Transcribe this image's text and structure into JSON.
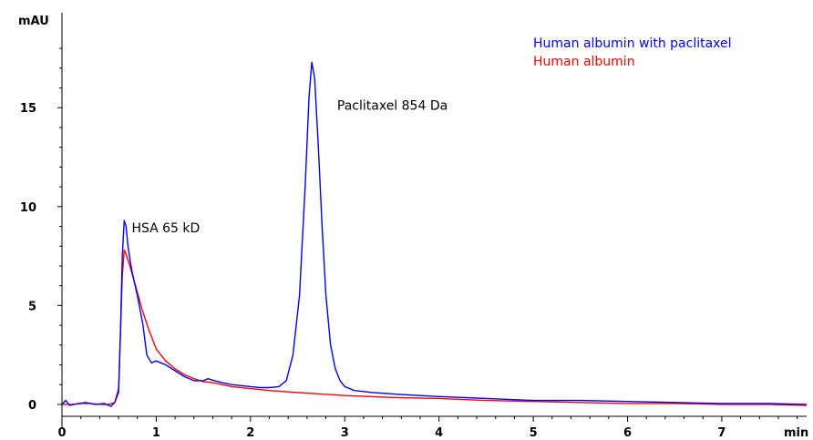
{
  "chart_data": {
    "type": "line",
    "title": "",
    "xlabel": "min",
    "ylabel": "mAU",
    "xlim": [
      0,
      7.9
    ],
    "ylim": [
      -1.2,
      19.8
    ],
    "grid": false,
    "legend_position": "top-right",
    "x_ticks": [
      0,
      1,
      2,
      3,
      4,
      5,
      6,
      7
    ],
    "y_ticks": [
      0,
      5,
      10,
      15
    ],
    "series": [
      {
        "name": "Human albumin with paclitaxel",
        "color": "#0000ff",
        "points": [
          [
            0.0,
            0.0
          ],
          [
            0.04,
            0.2
          ],
          [
            0.08,
            -0.05
          ],
          [
            0.15,
            0.02
          ],
          [
            0.25,
            0.1
          ],
          [
            0.35,
            0.0
          ],
          [
            0.45,
            0.05
          ],
          [
            0.52,
            -0.1
          ],
          [
            0.56,
            0.1
          ],
          [
            0.6,
            0.6
          ],
          [
            0.62,
            3.5
          ],
          [
            0.64,
            7.5
          ],
          [
            0.66,
            9.3
          ],
          [
            0.68,
            9.0
          ],
          [
            0.7,
            8.0
          ],
          [
            0.74,
            6.8
          ],
          [
            0.8,
            5.5
          ],
          [
            0.86,
            4.0
          ],
          [
            0.9,
            2.5
          ],
          [
            0.95,
            2.1
          ],
          [
            1.0,
            2.2
          ],
          [
            1.05,
            2.1
          ],
          [
            1.1,
            2.0
          ],
          [
            1.2,
            1.7
          ],
          [
            1.3,
            1.4
          ],
          [
            1.4,
            1.2
          ],
          [
            1.5,
            1.2
          ],
          [
            1.55,
            1.3
          ],
          [
            1.62,
            1.2
          ],
          [
            1.7,
            1.1
          ],
          [
            1.8,
            1.0
          ],
          [
            1.9,
            0.95
          ],
          [
            2.0,
            0.9
          ],
          [
            2.1,
            0.85
          ],
          [
            2.2,
            0.85
          ],
          [
            2.3,
            0.9
          ],
          [
            2.38,
            1.2
          ],
          [
            2.45,
            2.5
          ],
          [
            2.52,
            5.5
          ],
          [
            2.58,
            11.0
          ],
          [
            2.62,
            15.5
          ],
          [
            2.65,
            17.3
          ],
          [
            2.68,
            16.5
          ],
          [
            2.72,
            13.0
          ],
          [
            2.76,
            9.0
          ],
          [
            2.8,
            5.5
          ],
          [
            2.85,
            3.0
          ],
          [
            2.9,
            1.8
          ],
          [
            2.95,
            1.2
          ],
          [
            3.0,
            0.9
          ],
          [
            3.1,
            0.7
          ],
          [
            3.3,
            0.6
          ],
          [
            3.6,
            0.5
          ],
          [
            4.0,
            0.4
          ],
          [
            4.5,
            0.3
          ],
          [
            5.0,
            0.2
          ],
          [
            5.5,
            0.2
          ],
          [
            6.0,
            0.15
          ],
          [
            6.5,
            0.1
          ],
          [
            7.0,
            0.05
          ],
          [
            7.5,
            0.05
          ],
          [
            7.9,
            0.0
          ]
        ]
      },
      {
        "name": "Human albumin",
        "color": "#ff0000",
        "points": [
          [
            0.0,
            0.0
          ],
          [
            0.1,
            0.0
          ],
          [
            0.2,
            0.05
          ],
          [
            0.3,
            0.05
          ],
          [
            0.4,
            0.0
          ],
          [
            0.5,
            0.0
          ],
          [
            0.56,
            0.1
          ],
          [
            0.6,
            0.8
          ],
          [
            0.62,
            3.5
          ],
          [
            0.64,
            6.5
          ],
          [
            0.66,
            7.8
          ],
          [
            0.68,
            7.6
          ],
          [
            0.72,
            7.0
          ],
          [
            0.78,
            6.0
          ],
          [
            0.85,
            4.8
          ],
          [
            0.92,
            3.8
          ],
          [
            1.0,
            2.8
          ],
          [
            1.1,
            2.2
          ],
          [
            1.2,
            1.8
          ],
          [
            1.3,
            1.5
          ],
          [
            1.4,
            1.3
          ],
          [
            1.5,
            1.15
          ],
          [
            1.6,
            1.1
          ],
          [
            1.7,
            1.0
          ],
          [
            1.8,
            0.9
          ],
          [
            2.0,
            0.8
          ],
          [
            2.2,
            0.7
          ],
          [
            2.5,
            0.6
          ],
          [
            3.0,
            0.45
          ],
          [
            3.5,
            0.35
          ],
          [
            4.0,
            0.3
          ],
          [
            4.5,
            0.2
          ],
          [
            5.0,
            0.15
          ],
          [
            5.5,
            0.1
          ],
          [
            6.0,
            0.05
          ],
          [
            6.5,
            0.05
          ],
          [
            7.0,
            0.0
          ],
          [
            7.5,
            0.0
          ],
          [
            7.9,
            -0.05
          ]
        ]
      }
    ],
    "annotations": [
      {
        "text": "HSA 65 kD",
        "x": 0.72,
        "y": 8.7
      },
      {
        "text": "Paclitaxel 854 Da",
        "x": 2.9,
        "y": 14.9
      }
    ]
  }
}
